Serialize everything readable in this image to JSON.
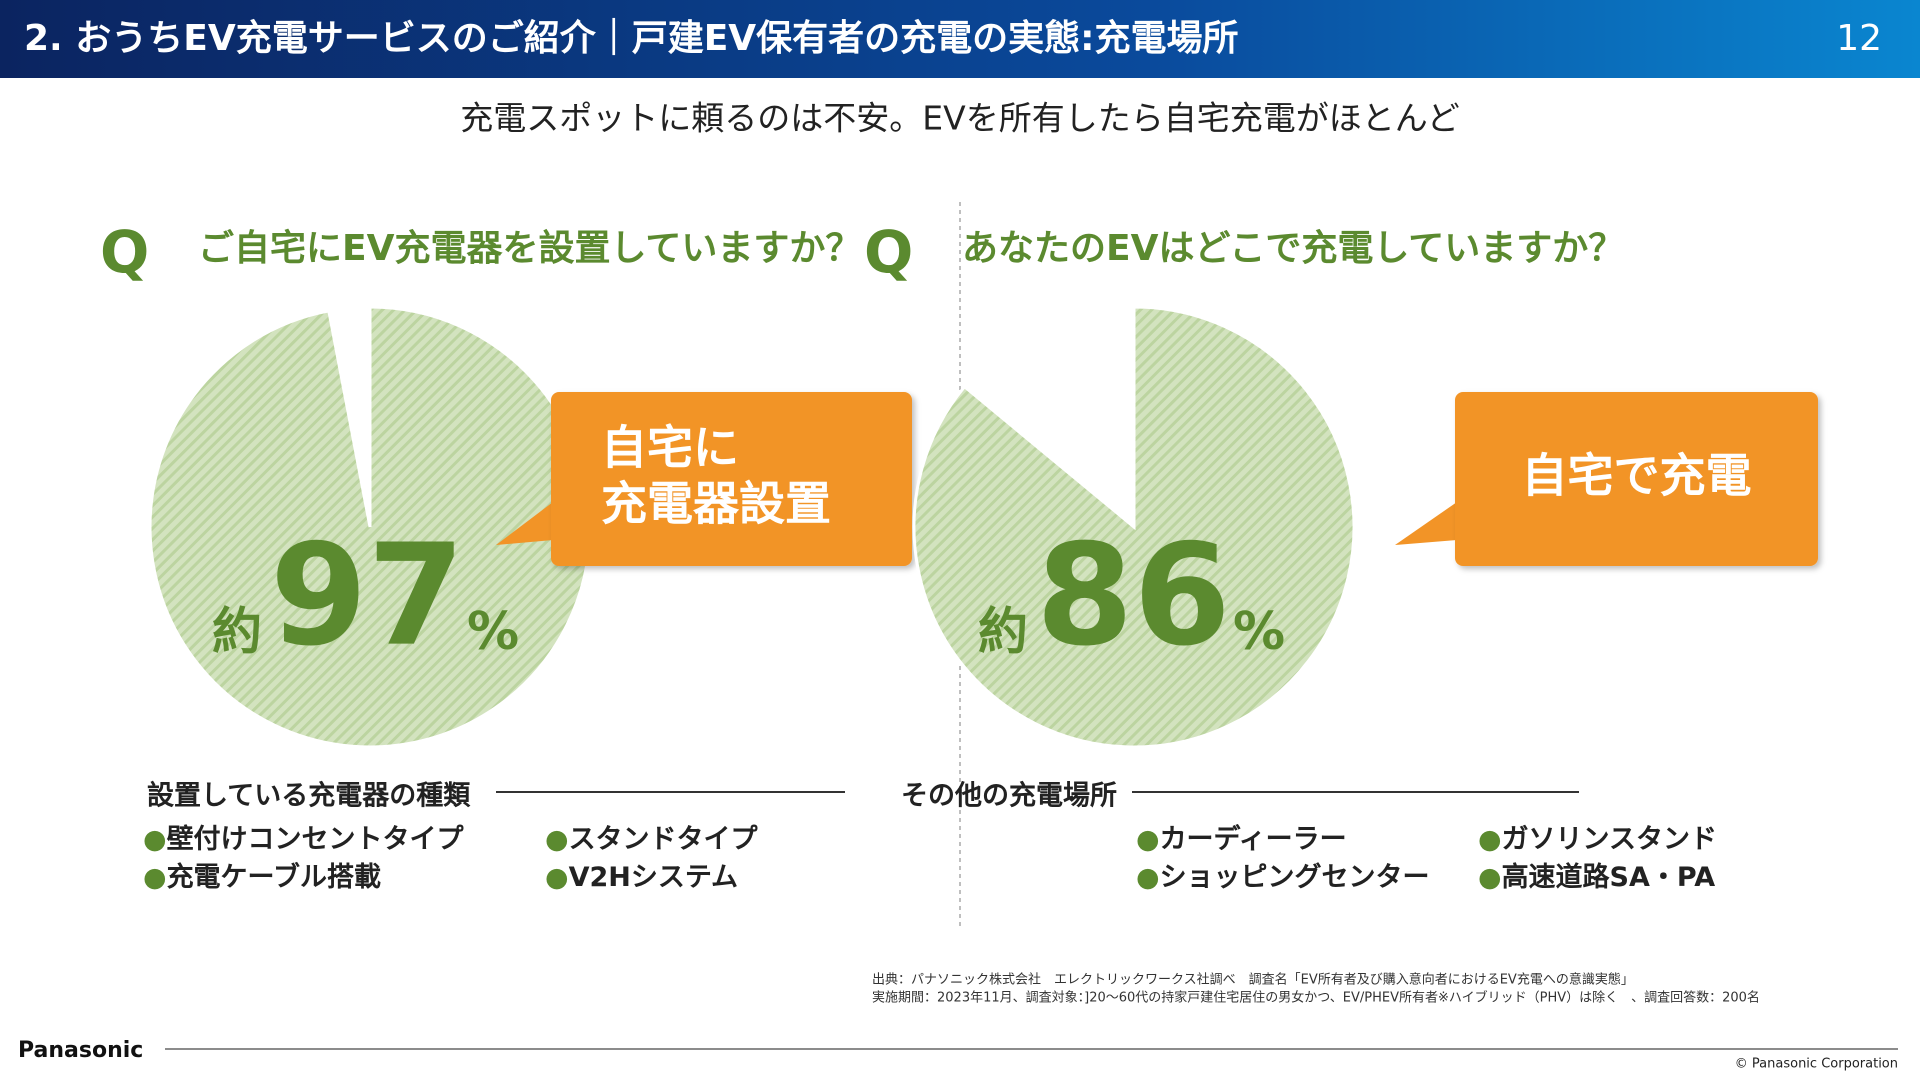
{
  "header": {
    "title": "2. おうちEV充電サービスのご紹介｜戸建EV保有者の充電の実態:充電場所",
    "page": "12"
  },
  "subtitle": "充電スポットに頼るのは不安。EVを所有したら自宅充電がほとんど",
  "panels": [
    {
      "q": "Q",
      "question": "ご自宅にEV充電器を設置していますか？",
      "pie": {
        "prefix": "約",
        "value": 97,
        "unit": "%"
      },
      "callout": [
        "自宅に",
        "充電器設置"
      ],
      "list_title": "設置している充電器の種類",
      "items": [
        "●壁付けコンセントタイプ",
        "●スタンドタイプ",
        "●充電ケーブル搭載",
        "●V2Hシステム"
      ]
    },
    {
      "q": "Q",
      "question": "あなたのEVはどこで充電していますか？",
      "pie": {
        "prefix": "約",
        "value": 86,
        "unit": "%"
      },
      "callout": [
        "自宅で充電"
      ],
      "list_title": "その他の充電場所",
      "items": [
        "●カーディーラー",
        "●ガソリンスタンド",
        "●ショッピングセンター",
        "●高速道路SA・PA"
      ]
    }
  ],
  "source": [
    "出典：パナソニック株式会社　エレクトリックワークス社調べ　調査名「EV所有者及び購入意向者におけるEV充電への意識実態」",
    "実施期間：2023年11月、調査対象：]20～60代の持家戸建住宅居住の男女かつ、EV/PHEV所有者※ハイブリッド（PHV）は除く　、調査回答数：200名"
  ],
  "footer": {
    "logo": "Panasonic",
    "copyright": "© Panasonic Corporation"
  }
}
